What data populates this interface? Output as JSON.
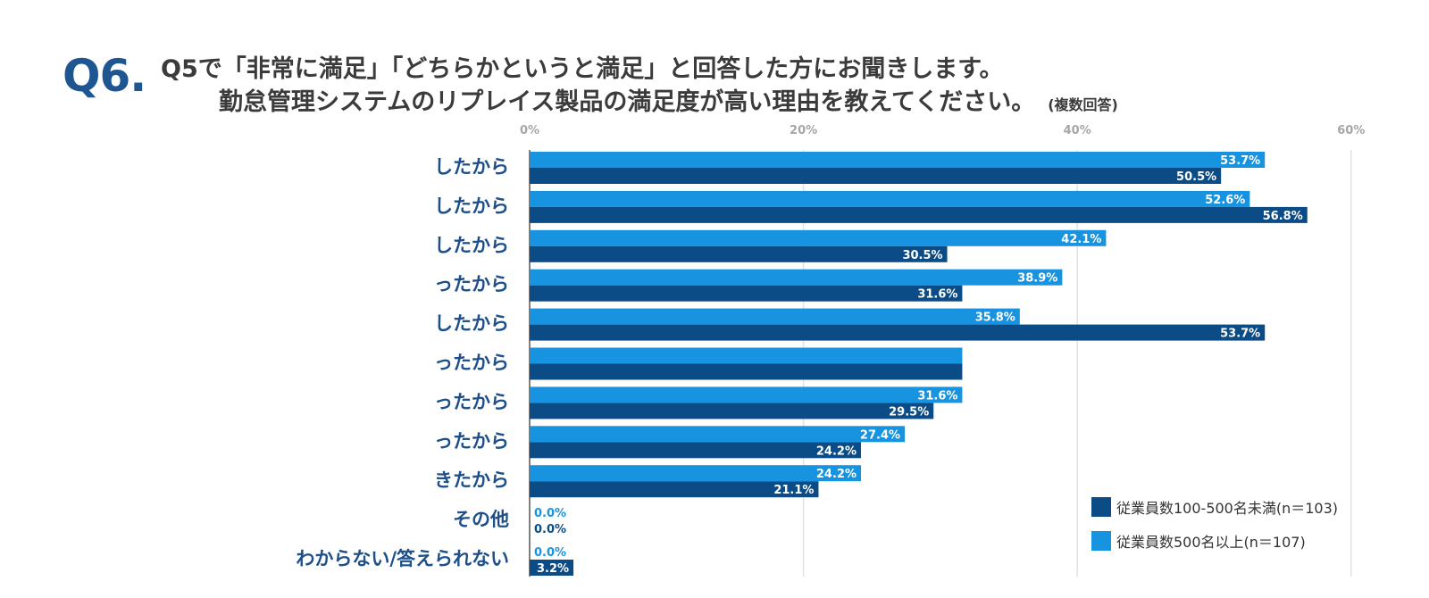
{
  "question": {
    "number": "Q6.",
    "line1": "Q5で「非常に満足」「どちらかというと満足」と回答した方にお聞きします。",
    "line2": "勤怠管理システムのリプレイス製品の満足度が高い理由を教えてください。",
    "note": "(複数回答)"
  },
  "chart_data": {
    "type": "bar",
    "orientation": "horizontal",
    "x_ticks": [
      "0%",
      "20%",
      "40%",
      "60%"
    ],
    "xlim": [
      0,
      60
    ],
    "grid": true,
    "legend_position": "bottom-right",
    "categories": [
      "したから",
      "したから",
      "したから",
      "ったから",
      "したから",
      "ったから",
      "ったから",
      "ったから",
      "きたから",
      "その他",
      "わからない/答えられない"
    ],
    "series": [
      {
        "name": "従業員数500名以上(n＝107)",
        "color": "#1893e0",
        "values": [
          53.7,
          52.6,
          42.1,
          38.9,
          35.8,
          31.6,
          31.6,
          27.4,
          24.2,
          0.0,
          0.0
        ],
        "labels": [
          "53.7%",
          "52.6%",
          "42.1%",
          "38.9%",
          "35.8%",
          "",
          "31.6%",
          "27.4%",
          "24.2%",
          "0.0%",
          "0.0%"
        ]
      },
      {
        "name": "従業員数100-500名未満(n＝103)",
        "color": "#0c4c86",
        "values": [
          50.5,
          56.8,
          30.5,
          31.6,
          53.7,
          31.6,
          29.5,
          24.2,
          21.1,
          0.0,
          3.2
        ],
        "labels": [
          "50.5%",
          "56.8%",
          "30.5%",
          "31.6%",
          "53.7%",
          "",
          "29.5%",
          "24.2%",
          "21.1%",
          "0.0%",
          "3.2%"
        ]
      }
    ],
    "legend_order": [
      1,
      0
    ]
  },
  "colors": {
    "title": "#3b3b3b",
    "accent": "#1d5691",
    "category_text": "#1d4f8a",
    "tick_text": "#a6a6a6",
    "grid": "#e2e2e2"
  }
}
